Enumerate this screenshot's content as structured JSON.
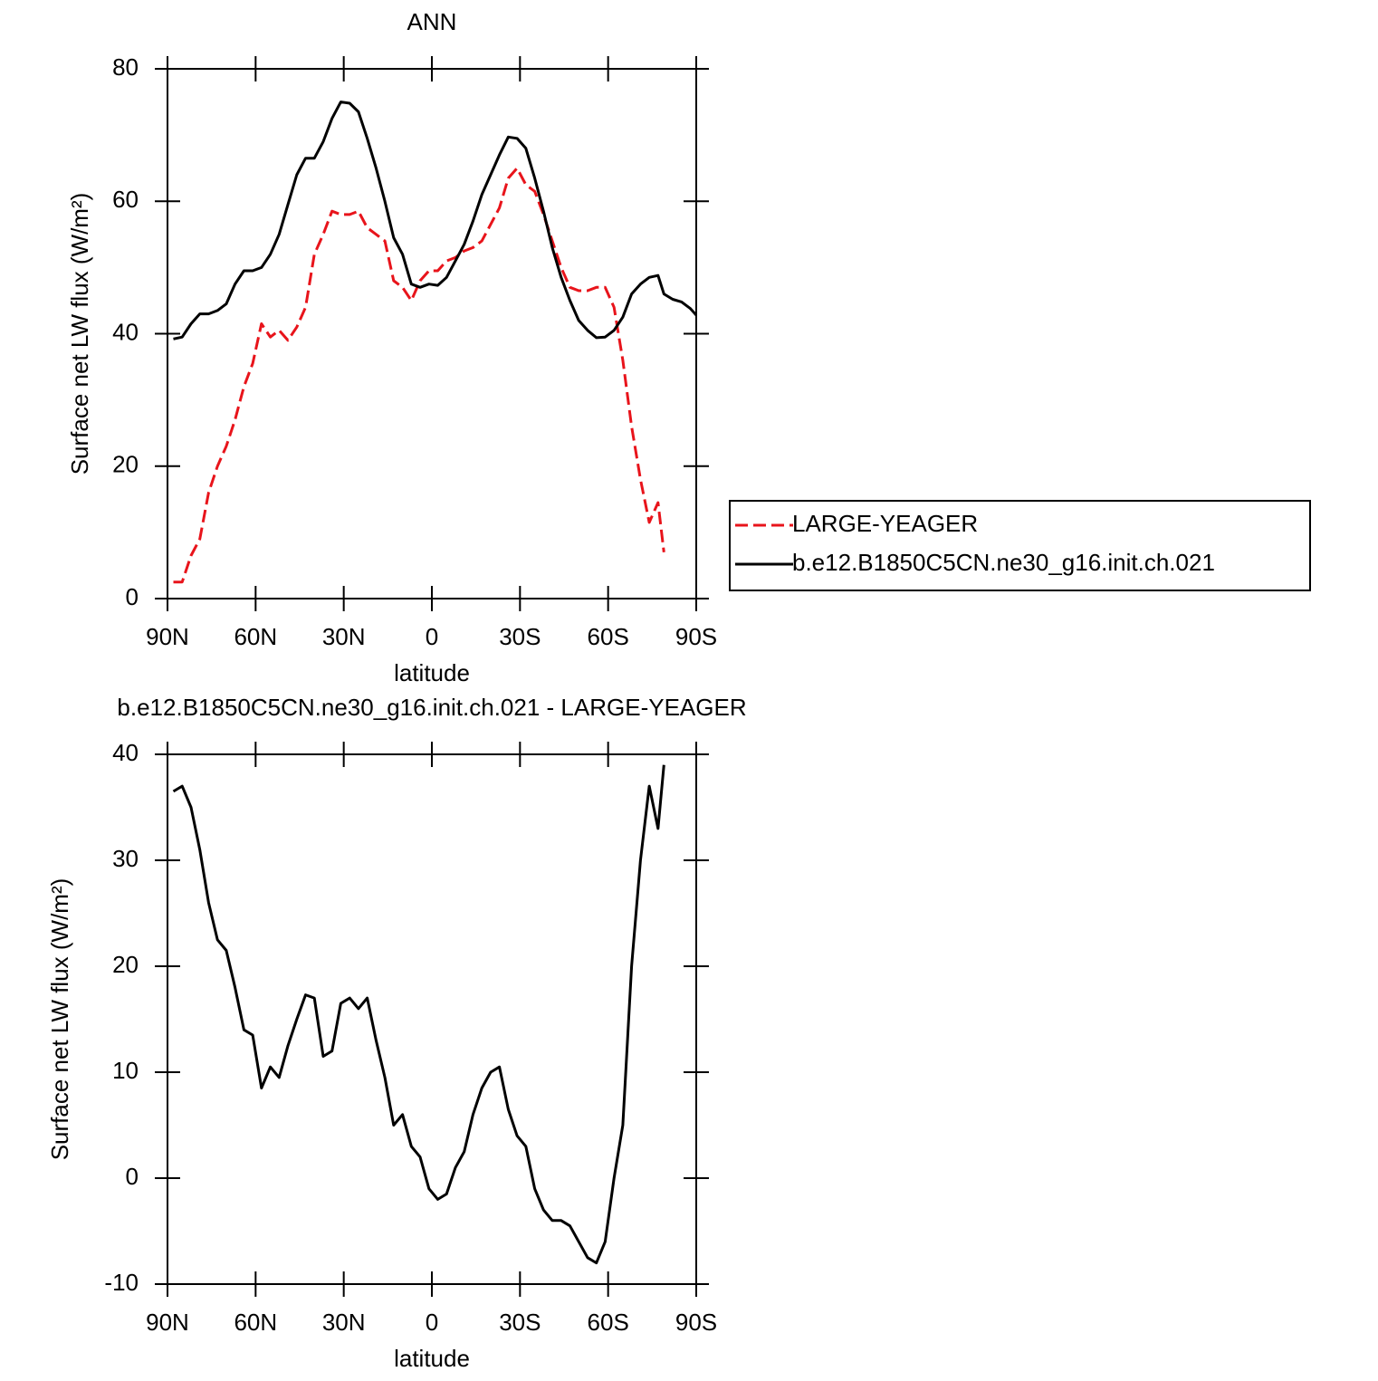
{
  "chart_data": [
    {
      "type": "line",
      "title": "ANN",
      "xlabel": "latitude",
      "ylabel": "Surface net LW flux (W/m²)",
      "x": [
        88,
        85,
        82,
        79,
        76,
        73,
        70,
        67,
        64,
        61,
        58,
        55,
        52,
        49,
        46,
        43,
        40,
        37,
        34,
        31,
        28,
        25,
        22,
        19,
        16,
        13,
        10,
        7,
        4,
        1,
        -2,
        -5,
        -8,
        -11,
        -14,
        -17,
        -20,
        -23,
        -26,
        -29,
        -32,
        -35,
        -38,
        -41,
        -44,
        -47,
        -50,
        -53,
        -56,
        -59,
        -62,
        -65,
        -68,
        -71,
        -74,
        -77,
        -79,
        -82,
        -85,
        -88,
        -90
      ],
      "series": [
        {
          "name": "LARGE-YEAGER",
          "color": "#e8141b",
          "dash": true,
          "values": [
            2.5,
            2.5,
            6.5,
            9,
            16,
            20,
            23,
            27,
            32,
            35.5,
            41.5,
            39.5,
            40.5,
            39,
            41,
            44,
            52,
            55,
            58.5,
            58,
            58,
            58.5,
            56,
            55,
            54,
            48,
            47,
            45,
            48,
            49.5,
            49.5,
            51,
            51.5,
            52.5,
            53,
            54,
            56.5,
            59,
            63.5,
            65,
            62.5,
            61.5,
            58,
            54,
            50,
            47,
            46.5,
            46.5,
            47,
            47,
            44,
            36,
            26,
            18,
            11.5,
            14.5,
            7,
            null,
            null,
            null,
            null
          ]
        },
        {
          "name": "b.e12.B1850C5CN.ne30_g16.init.ch.021",
          "color": "#000000",
          "dash": false,
          "values": [
            39.2,
            39.5,
            41.5,
            43,
            43,
            43.5,
            44.5,
            47.5,
            49.5,
            49.5,
            50,
            52,
            55,
            59.5,
            64,
            66.5,
            66.5,
            69,
            72.5,
            75,
            74.8,
            73.5,
            69.5,
            65,
            60,
            54.5,
            52,
            47.5,
            47,
            47.5,
            47.3,
            48.5,
            51,
            53.5,
            57,
            61,
            64,
            67,
            69.7,
            69.5,
            68,
            63.5,
            58.5,
            53,
            48.5,
            45,
            42,
            40.5,
            39.4,
            39.5,
            40.5,
            42.5,
            46,
            47.5,
            48.5,
            48.8,
            46,
            45.2,
            44.8,
            43.8,
            42.8
          ]
        }
      ],
      "xlim": [
        90,
        -90
      ],
      "xticks": [
        {
          "value": 90,
          "label": "90N"
        },
        {
          "value": 60,
          "label": "60N"
        },
        {
          "value": 30,
          "label": "30N"
        },
        0,
        {
          "value": -30,
          "label": "30S"
        },
        {
          "value": -60,
          "label": "60S"
        },
        {
          "value": -90,
          "label": "90S"
        }
      ],
      "ylim": [
        0,
        80
      ],
      "yticks": [
        0,
        20,
        40,
        60,
        80
      ],
      "legend": "right"
    },
    {
      "type": "line",
      "title": "b.e12.B1850C5CN.ne30_g16.init.ch.021 - LARGE-YEAGER",
      "xlabel": "latitude",
      "ylabel": "Surface net LW flux (W/m²)",
      "x": [
        88,
        85,
        82,
        79,
        76,
        73,
        70,
        67,
        64,
        61,
        58,
        55,
        52,
        49,
        46,
        43,
        40,
        37,
        34,
        31,
        28,
        25,
        22,
        19,
        16,
        13,
        10,
        7,
        4,
        1,
        -2,
        -5,
        -8,
        -11,
        -14,
        -17,
        -20,
        -23,
        -26,
        -29,
        -32,
        -35,
        -38,
        -41,
        -44,
        -47,
        -50,
        -53,
        -56,
        -59,
        -62,
        -65,
        -68,
        -71,
        -74,
        -77,
        -79
      ],
      "series": [
        {
          "color": "#000000",
          "dash": false,
          "values": [
            36.5,
            37,
            35,
            31,
            26,
            22.5,
            21.5,
            18,
            14,
            13.5,
            8.5,
            10.5,
            9.5,
            12.5,
            15,
            17.3,
            17,
            11.5,
            12,
            16.5,
            17,
            16,
            17,
            13,
            9.5,
            5,
            6,
            3,
            2,
            -1,
            -2,
            -1.5,
            1,
            2.5,
            6,
            8.5,
            10,
            10.5,
            6.5,
            4,
            3,
            -1,
            -3,
            -4,
            -4,
            -4.5,
            -6,
            -7.5,
            -8,
            -6,
            0,
            5,
            20,
            30,
            37,
            33,
            39
          ]
        }
      ],
      "xlim": [
        90,
        -90
      ],
      "xticks": [
        {
          "value": 90,
          "label": "90N"
        },
        {
          "value": 60,
          "label": "60N"
        },
        {
          "value": 30,
          "label": "30N"
        },
        0,
        {
          "value": -30,
          "label": "30S"
        },
        {
          "value": -60,
          "label": "60S"
        },
        {
          "value": -90,
          "label": "90S"
        }
      ],
      "ylim": [
        -10,
        40
      ],
      "yticks": [
        -10,
        0,
        10,
        20,
        30,
        40
      ]
    }
  ]
}
